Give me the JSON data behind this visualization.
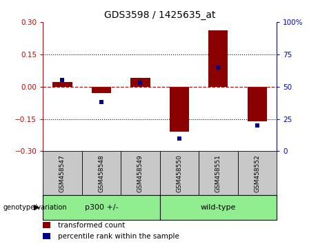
{
  "title": "GDS3598 / 1425635_at",
  "samples": [
    "GSM458547",
    "GSM458548",
    "GSM458549",
    "GSM458550",
    "GSM458551",
    "GSM458552"
  ],
  "transformed_count": [
    0.02,
    -0.03,
    0.04,
    -0.21,
    0.26,
    -0.16
  ],
  "percentile_rank": [
    55,
    38,
    53,
    10,
    65,
    20
  ],
  "group_p300": [
    0,
    1,
    2
  ],
  "group_wt": [
    3,
    4,
    5
  ],
  "group_p300_label": "p300 +/-",
  "group_wt_label": "wild-type",
  "ylim_left": [
    -0.3,
    0.3
  ],
  "ylim_right": [
    0,
    100
  ],
  "yticks_left": [
    -0.3,
    -0.15,
    0,
    0.15,
    0.3
  ],
  "yticks_right": [
    0,
    25,
    50,
    75,
    100
  ],
  "yticklabels_right": [
    "0",
    "25",
    "50",
    "75",
    "100%"
  ],
  "bar_color": "#8B0000",
  "dot_color": "#00008B",
  "hline_color": "#CC0000",
  "dotted_line_color": "#000000",
  "xlabel_area_color": "#c8c8c8",
  "group_color": "#90EE90",
  "genotype_label": "genotype/variation",
  "legend_red_label": "transformed count",
  "legend_blue_label": "percentile rank within the sample",
  "title_fontsize": 10,
  "bar_width": 0.5
}
